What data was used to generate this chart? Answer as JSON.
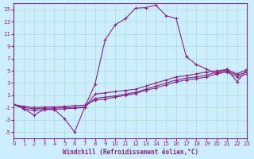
{
  "xlabel": "Windchill (Refroidissement éolien,°C)",
  "background_color": "#cceeff",
  "grid_color": "#aaddcc",
  "line_color": "#882288",
  "xlim": [
    0,
    23
  ],
  "ylim": [
    -6,
    16
  ],
  "yticks": [
    -5,
    -3,
    -1,
    1,
    3,
    5,
    7,
    9,
    11,
    13,
    15
  ],
  "xticks": [
    0,
    1,
    2,
    3,
    4,
    5,
    6,
    7,
    8,
    9,
    10,
    11,
    12,
    13,
    14,
    15,
    16,
    17,
    18,
    19,
    20,
    21,
    22,
    23
  ],
  "series": [
    [
      0,
      1,
      2,
      3,
      4,
      5,
      6,
      7,
      8,
      9,
      10,
      11,
      12,
      13,
      14,
      15,
      16,
      17,
      18,
      19,
      20,
      21,
      22,
      23
    ],
    [
      -0.5,
      -1.2,
      -2.2,
      -1.3,
      -1.3,
      -2.8,
      -5.0,
      -0.9,
      2.8,
      10.0,
      12.5,
      13.5,
      15.2,
      15.3,
      15.7,
      14.0,
      13.5,
      7.3,
      6.0,
      5.3,
      4.5,
      5.3,
      3.2,
      5.2
    ],
    [
      -0.5,
      -1.2,
      -1.5,
      -1.3,
      -1.3,
      -1.2,
      -1.1,
      -1.0,
      1.2,
      1.4,
      1.6,
      1.8,
      2.0,
      2.5,
      3.0,
      3.5,
      4.0,
      4.2,
      4.5,
      4.8,
      5.0,
      5.2,
      4.5,
      5.2
    ],
    [
      -0.5,
      -1.0,
      -1.2,
      -1.1,
      -1.1,
      -1.0,
      -1.0,
      -0.9,
      0.5,
      0.7,
      0.9,
      1.2,
      1.5,
      2.0,
      2.5,
      3.0,
      3.5,
      3.8,
      4.0,
      4.3,
      4.8,
      5.0,
      4.3,
      4.8
    ],
    [
      -0.5,
      -0.8,
      -1.0,
      -0.9,
      -0.9,
      -0.8,
      -0.7,
      -0.6,
      0.2,
      0.4,
      0.7,
      1.0,
      1.3,
      1.8,
      2.2,
      2.7,
      3.2,
      3.5,
      3.7,
      4.0,
      4.5,
      4.8,
      4.0,
      4.5
    ]
  ]
}
